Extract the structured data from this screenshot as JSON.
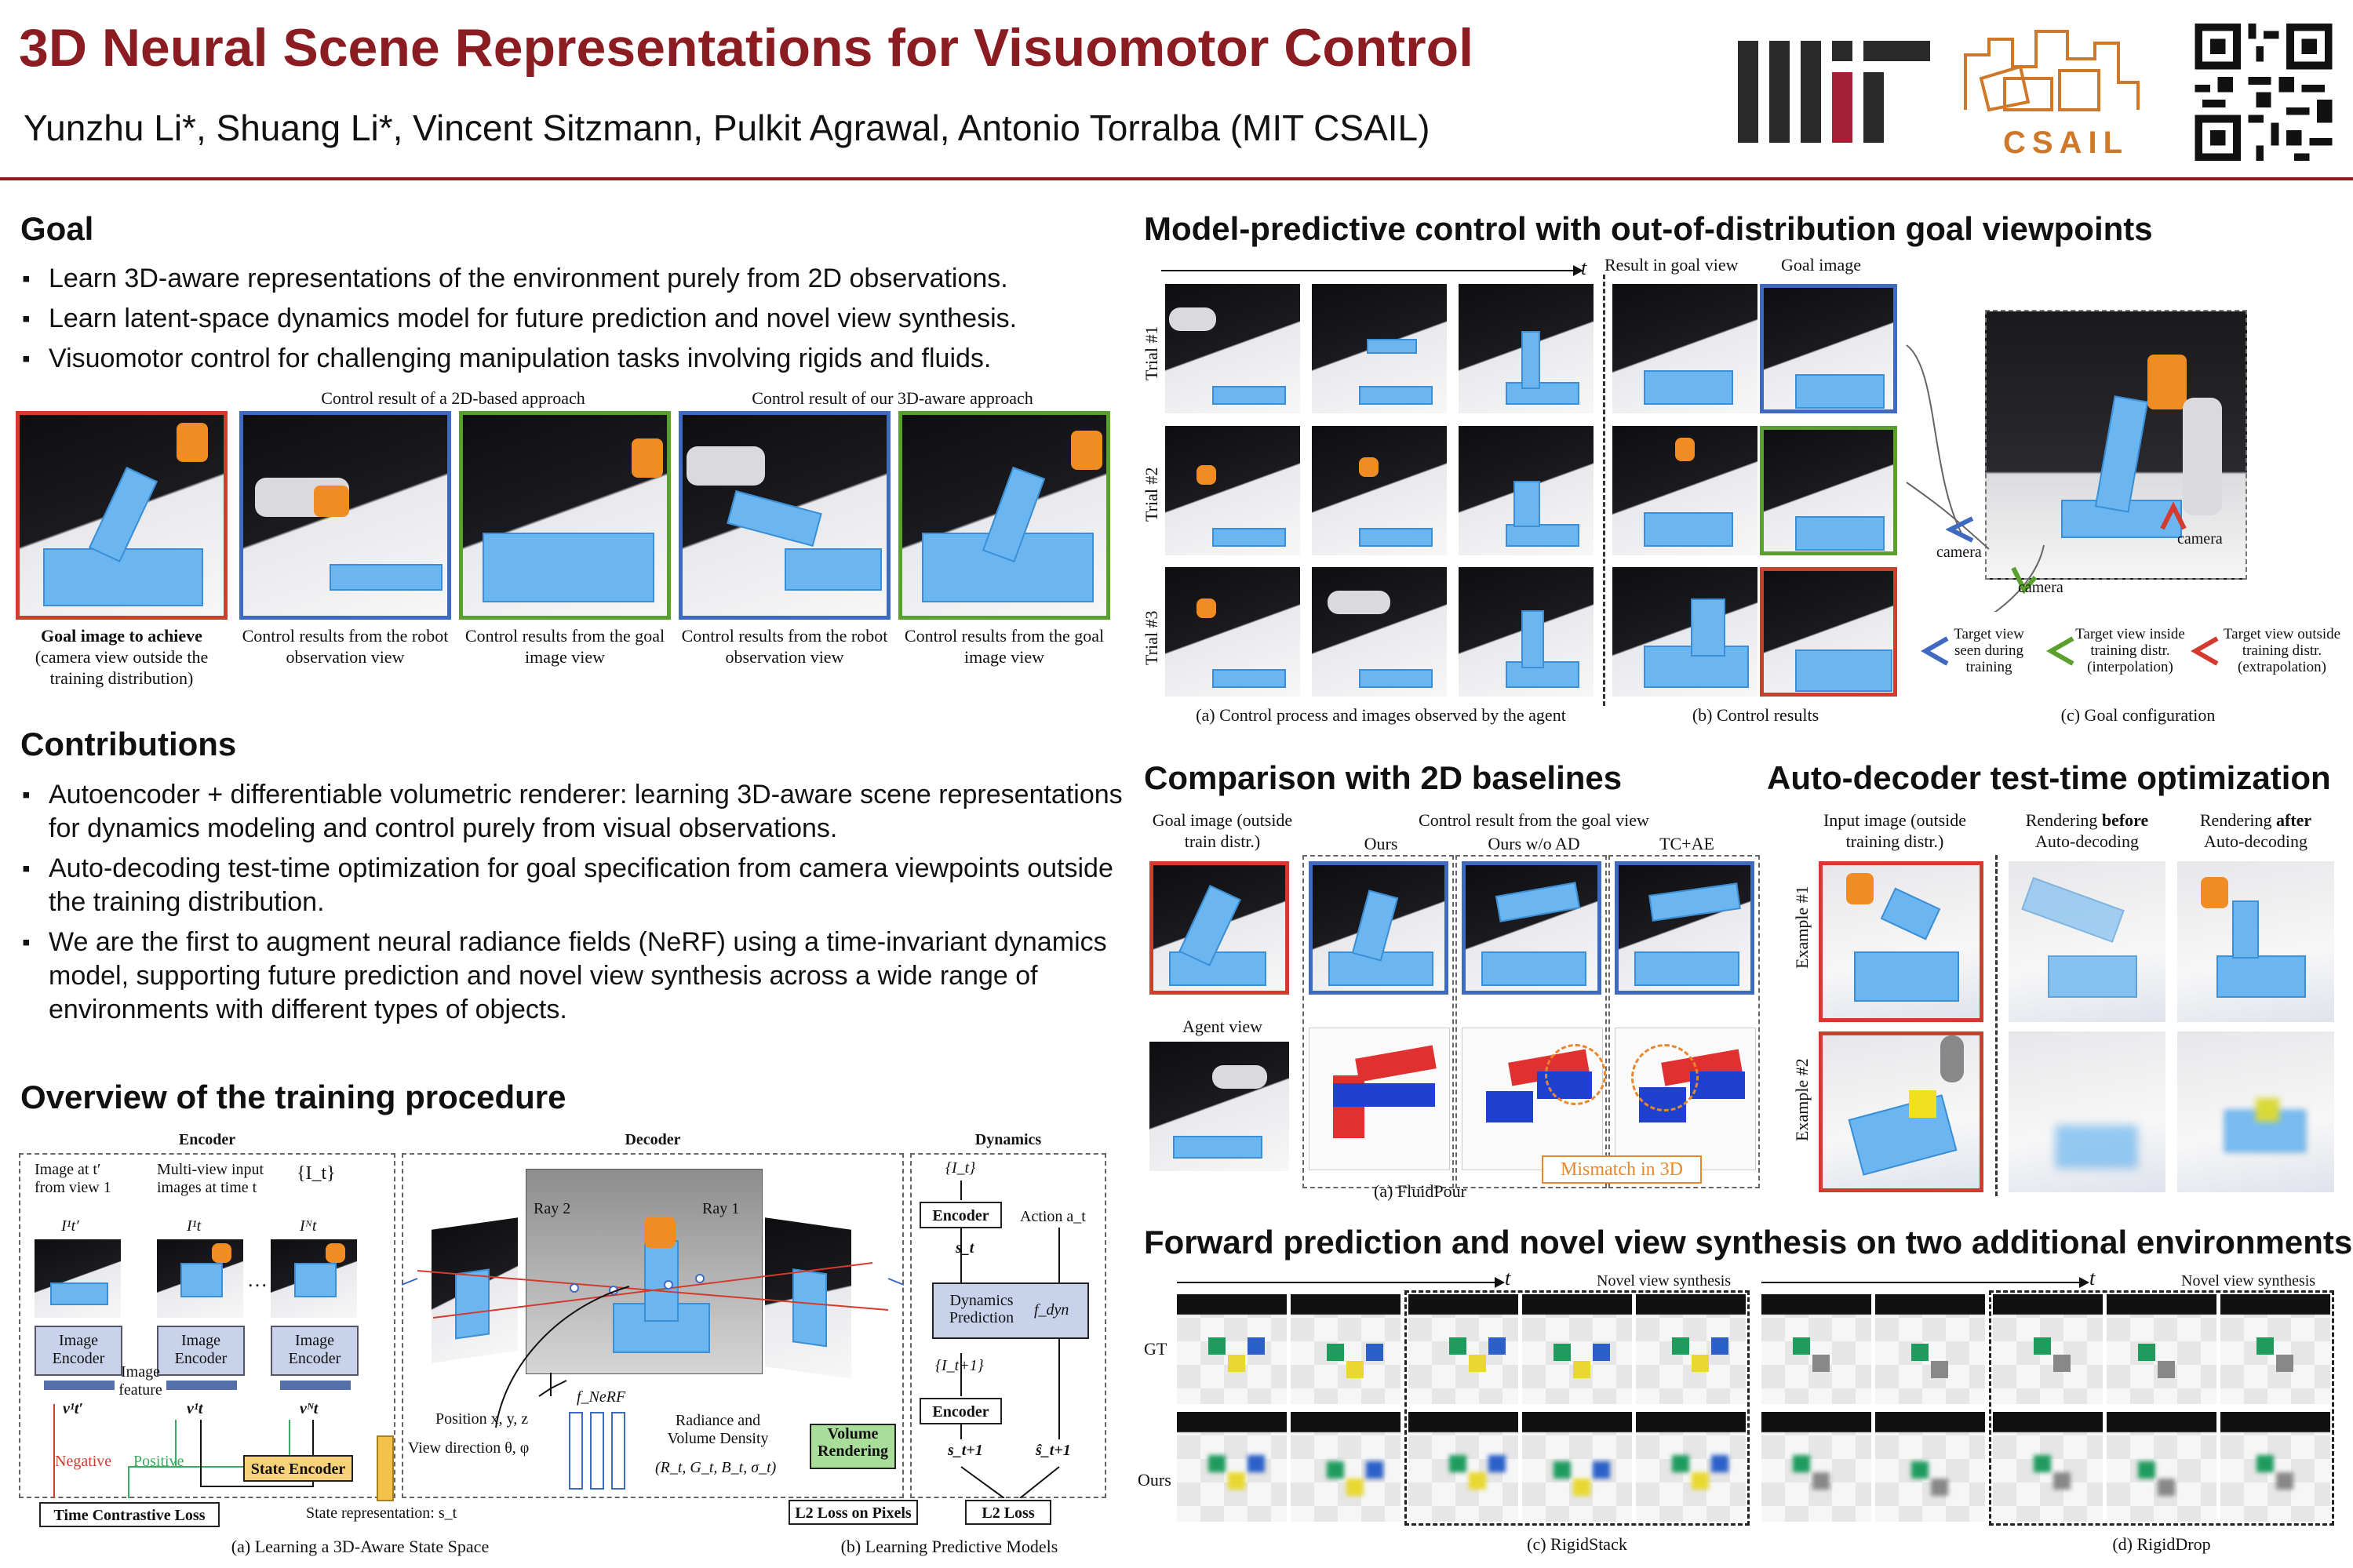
{
  "header": {
    "title": "3D Neural Scene Representations for Visuomotor Control",
    "authors": "Yunzhu Li*, Shuang Li*, Vincent Sitzmann, Pulkit Agrawal, Antonio Torralba (MIT CSAIL)",
    "logo_mit": "MIT",
    "logo_csail": "CSAIL"
  },
  "goal": {
    "heading": "Goal",
    "bullets": [
      "Learn 3D-aware representations of the environment purely from 2D observations.",
      "Learn latent-space dynamics model for future prediction and novel view synthesis.",
      "Visuomotor control for challenging manipulation tasks involving rigids and fluids."
    ],
    "group_2d": "Control result of a 2D-based approach",
    "group_3d": "Control result of our 3D-aware approach",
    "captions": [
      {
        "bold": "Goal image to achieve",
        "rest": "(camera view outside the training distribution)"
      },
      {
        "bold": "",
        "rest": "Control results from the robot observation view"
      },
      {
        "bold": "",
        "rest": "Control results from the goal image view"
      },
      {
        "bold": "",
        "rest": "Control results from the robot observation view"
      },
      {
        "bold": "",
        "rest": "Control results from the goal image view"
      }
    ]
  },
  "contributions": {
    "heading": "Contributions",
    "bullets": [
      "Autoencoder + differentiable volumetric renderer: learning 3D-aware scene representations for dynamics modeling and control purely from visual observations.",
      "Auto-decoding test-time optimization for goal specification from camera viewpoints outside the training distribution.",
      "We are the first to augment neural radiance fields (NeRF) using a time-invariant dynamics model, supporting future prediction and novel view synthesis across a wide range of environments with different types of objects."
    ]
  },
  "overview": {
    "heading": "Overview of the training procedure",
    "encoder_title": "Encoder",
    "decoder_title": "Decoder",
    "dynamics_title": "Dynamics",
    "image_at": "Image at t′ from view 1",
    "multiview": "Multi-view input images at time t",
    "it_set": "{I_t}",
    "img_labels": [
      "I¹t′",
      "I¹t",
      "Iᴺt"
    ],
    "image_encoder": "Image Encoder",
    "image_feature": "Image feature",
    "vec_labels": [
      "v¹t′",
      "v¹t",
      "vᴺt"
    ],
    "negative": "Negative",
    "positive": "Positive",
    "state_encoder": "State Encoder",
    "time_contrastive": "Time Contrastive Loss",
    "state_rep": "State representation: s_t",
    "ray1": "Ray 1",
    "ray2": "Ray 2",
    "position": "Position x, y, z",
    "view_dir": "View direction θ, φ",
    "f_nerf": "f_NeRF",
    "radiance": "Radiance and Volume Density",
    "radiance_vals": "(R_t, G_t, B_t, σ_t)",
    "volume_rendering": "Volume Rendering",
    "l2_pixels": "L2 Loss on Pixels",
    "dyn_it": "{I_t}",
    "dyn_encoder": "Encoder",
    "dyn_st": "s_t",
    "action": "Action a_t",
    "dyn_pred": "Dynamics Prediction",
    "f_dyn": "f_dyn",
    "dyn_it1": "{I_t+1}",
    "dyn_encoder2": "Encoder",
    "dyn_st1": "s_t+1",
    "dyn_st1_hat": "ŝ_t+1",
    "l2_loss": "L2 Loss",
    "caption_a": "(a) Learning a 3D-Aware State Space",
    "caption_b": "(b) Learning Predictive Models"
  },
  "mpc": {
    "heading": "Model-predictive control with out-of-distribution goal viewpoints",
    "time": "t",
    "result_in_goal": "Result in goal view",
    "goal_image": "Goal image",
    "trials": [
      "Trial #1",
      "Trial #2",
      "Trial #3"
    ],
    "caption_a": "(a) Control process and images observed by the agent",
    "caption_b": "(b) Control results",
    "caption_c": "(c) Goal configuration",
    "camera": "camera",
    "legend": [
      {
        "text": "Target view seen during training",
        "color": "#3e6ac0"
      },
      {
        "text": "Target view inside training distr. (interpolation)",
        "color": "#5aa02c"
      },
      {
        "text": "Target view outside training distr. (extrapolation)",
        "color": "#d23b2e"
      }
    ]
  },
  "comparison": {
    "heading": "Comparison with 2D baselines",
    "goal_image": "Goal image (outside train distr.)",
    "control_result": "Control result from the goal view",
    "methods": [
      "Ours",
      "Ours w/o AD",
      "TC+AE"
    ],
    "agent_view": "Agent view",
    "mismatch": "Mismatch in 3D",
    "caption": "(a) FluidPour"
  },
  "autodecoder": {
    "heading": "Auto-decoder test-time optimization",
    "input_image": "Input image (outside training distr.)",
    "before": {
      "pre": "Rendering ",
      "bold": "before",
      "post": "Auto-decoding"
    },
    "after": {
      "pre": "Rendering ",
      "bold": "after",
      "post": "Auto-decoding"
    },
    "examples": [
      "Example #1",
      "Example #2"
    ]
  },
  "forward": {
    "heading": "Forward prediction and novel view synthesis on two additional environments",
    "time": "t",
    "novel_view": "Novel view synthesis",
    "rows": [
      "GT",
      "Ours"
    ],
    "caption_c": "(c) RigidStack",
    "caption_d": "(d) RigidDrop"
  },
  "colors": {
    "title": "#8a1c22",
    "goal_red": "#d23b2e",
    "robot_blue": "#3e6ac0",
    "goal_green": "#5aa02c",
    "mismatch_orange": "#e8872b"
  }
}
